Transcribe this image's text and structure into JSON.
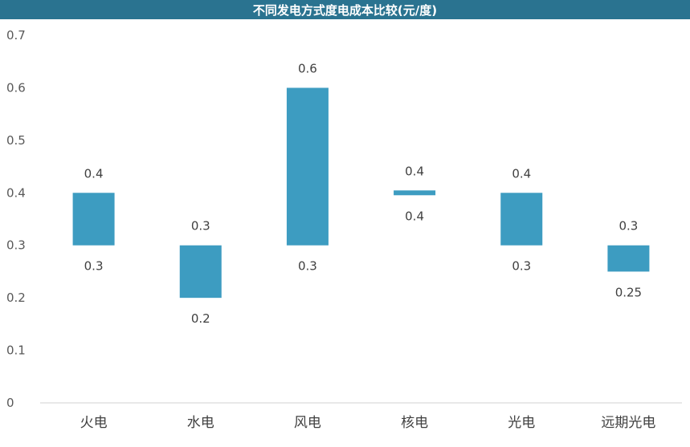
{
  "chart_data": {
    "type": "bar",
    "title": "不同发电方式度电成本比较(元/度)",
    "categories": [
      "火电",
      "水电",
      "风电",
      "核电",
      "光电",
      "远期光电"
    ],
    "series": [
      {
        "low_labels": [
          "0.3",
          "0.2",
          "0.3",
          "0.4",
          "0.3",
          "0.25"
        ],
        "high_labels": [
          "0.4",
          "0.3",
          "0.6",
          "0.4",
          "0.4",
          "0.3"
        ]
      }
    ],
    "low": [
      0.3,
      0.2,
      0.3,
      0.4,
      0.3,
      0.25
    ],
    "high": [
      0.4,
      0.3,
      0.6,
      0.4,
      0.4,
      0.3
    ],
    "yticks": [
      "0",
      "0.1",
      "0.2",
      "0.3",
      "0.4",
      "0.5",
      "0.6",
      "0.7"
    ],
    "ylim": [
      0,
      0.7
    ],
    "bar_color": "#3d9cc1",
    "title_bg": "#2a7390",
    "grid": false
  }
}
